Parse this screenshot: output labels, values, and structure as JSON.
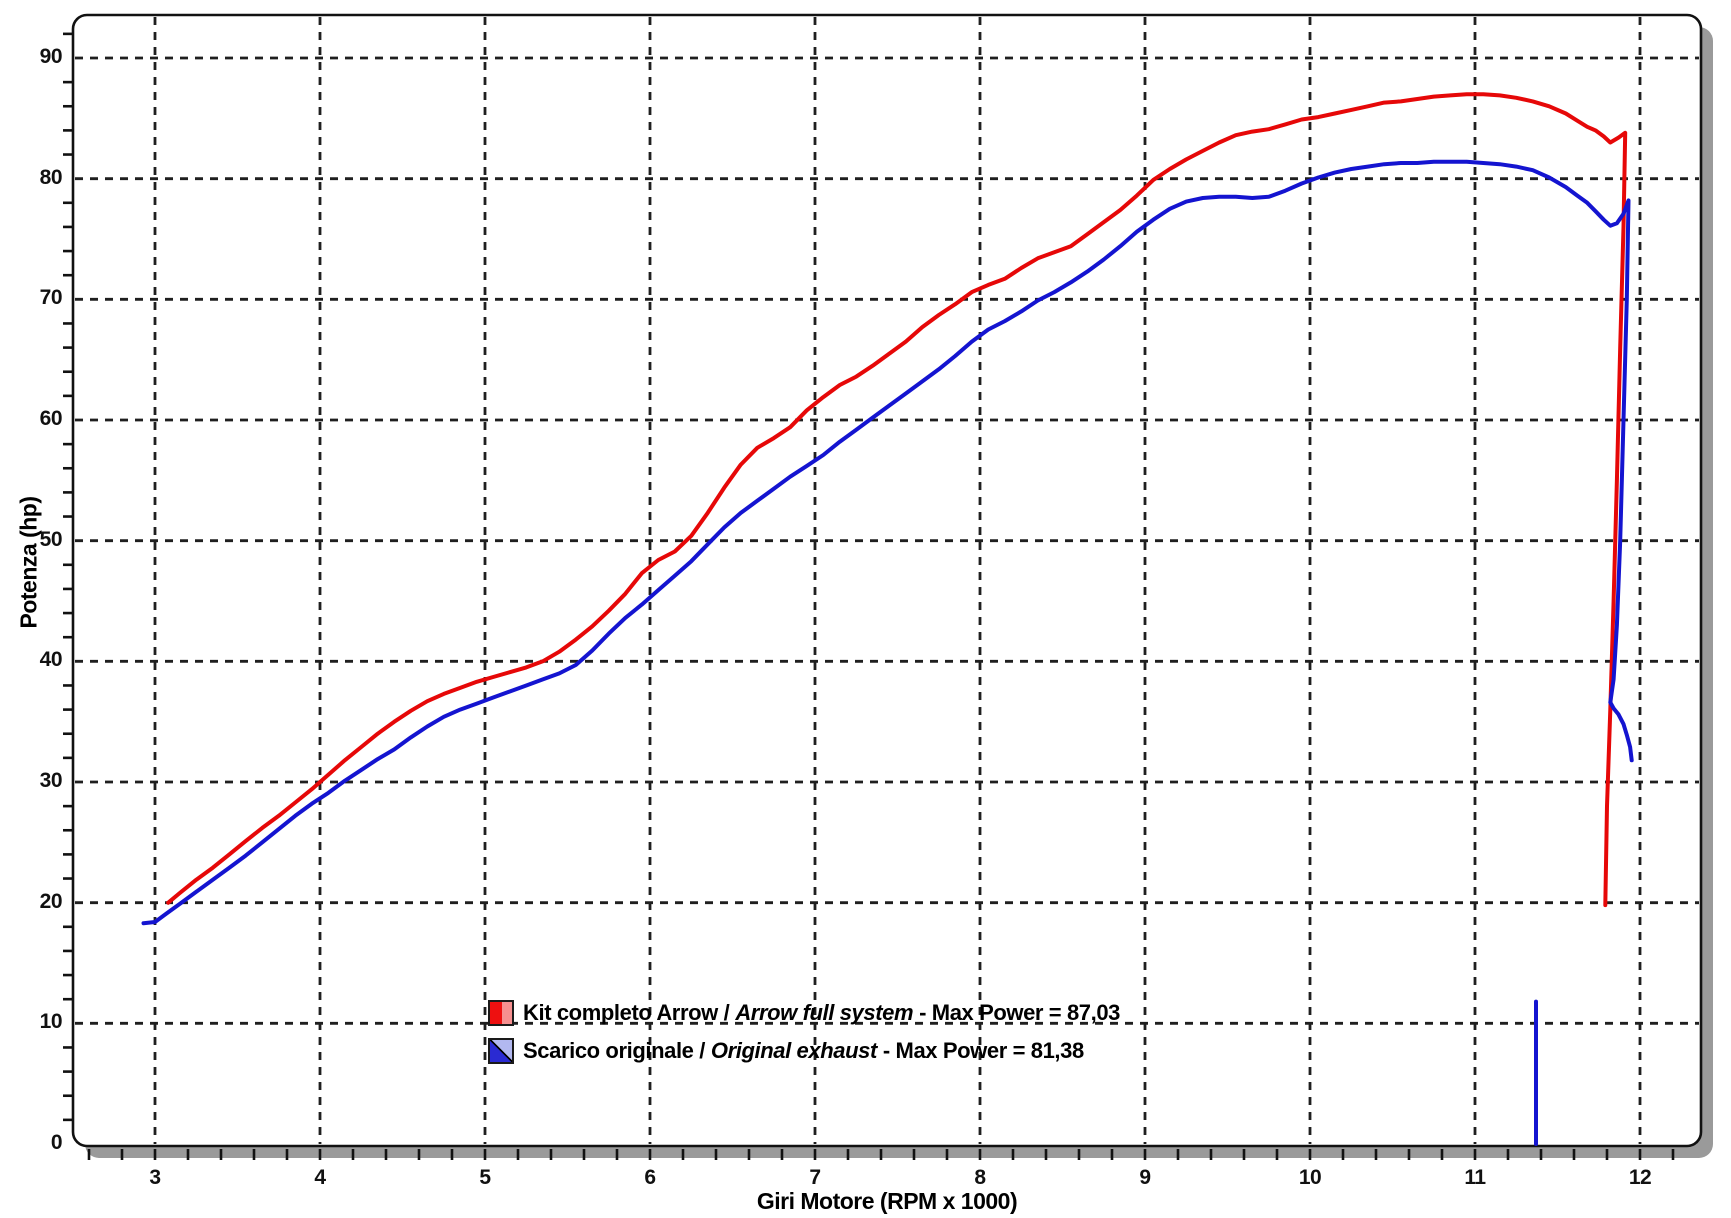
{
  "chart_data": {
    "type": "line",
    "title": "",
    "xlabel": "Giri Motore (RPM x 1000)",
    "ylabel": "Potenza (hp)",
    "xlim": [
      2.5,
      12.37
    ],
    "ylim": [
      0,
      93.6
    ],
    "x_ticks": [
      3,
      4,
      5,
      6,
      7,
      8,
      9,
      10,
      11,
      12
    ],
    "y_ticks": [
      0,
      10,
      20,
      30,
      40,
      50,
      60,
      70,
      80,
      90
    ],
    "x_minor_step": 0.2,
    "y_minor_step": 2,
    "grid": "dashed-black",
    "grid_color": "#1f1f1f",
    "frame_color": "#111111",
    "shadow_color": "#9a9a9a",
    "legend_position": "inside-bottom-left",
    "series": [
      {
        "name": "Kit completo Arrow / Arrow full system",
        "color": "#e60808",
        "max_power": "87,03",
        "segments": [
          [
            [
              3.08,
              20.0
            ],
            [
              3.15,
              20.8
            ],
            [
              3.25,
              21.9
            ],
            [
              3.35,
              22.9
            ],
            [
              3.45,
              24.0
            ],
            [
              3.55,
              25.1
            ],
            [
              3.65,
              26.2
            ],
            [
              3.75,
              27.2
            ],
            [
              3.85,
              28.3
            ],
            [
              3.95,
              29.4
            ],
            [
              4.05,
              30.6
            ],
            [
              4.15,
              31.8
            ],
            [
              4.25,
              32.9
            ],
            [
              4.35,
              34.0
            ],
            [
              4.45,
              35.0
            ],
            [
              4.55,
              35.9
            ],
            [
              4.65,
              36.7
            ],
            [
              4.75,
              37.3
            ],
            [
              4.85,
              37.8
            ],
            [
              4.95,
              38.3
            ],
            [
              5.05,
              38.7
            ],
            [
              5.15,
              39.1
            ],
            [
              5.25,
              39.5
            ],
            [
              5.35,
              40.0
            ],
            [
              5.45,
              40.8
            ],
            [
              5.55,
              41.8
            ],
            [
              5.65,
              42.9
            ],
            [
              5.75,
              44.2
            ],
            [
              5.85,
              45.6
            ],
            [
              5.95,
              47.3
            ],
            [
              6.05,
              48.4
            ],
            [
              6.15,
              49.1
            ],
            [
              6.25,
              50.4
            ],
            [
              6.35,
              52.3
            ],
            [
              6.45,
              54.4
            ],
            [
              6.55,
              56.3
            ],
            [
              6.65,
              57.7
            ],
            [
              6.75,
              58.5
            ],
            [
              6.85,
              59.4
            ],
            [
              6.95,
              60.8
            ],
            [
              7.05,
              61.9
            ],
            [
              7.15,
              62.9
            ],
            [
              7.25,
              63.6
            ],
            [
              7.35,
              64.5
            ],
            [
              7.45,
              65.5
            ],
            [
              7.55,
              66.5
            ],
            [
              7.65,
              67.7
            ],
            [
              7.75,
              68.7
            ],
            [
              7.85,
              69.6
            ],
            [
              7.95,
              70.6
            ],
            [
              8.05,
              71.2
            ],
            [
              8.15,
              71.7
            ],
            [
              8.25,
              72.6
            ],
            [
              8.35,
              73.4
            ],
            [
              8.45,
              73.9
            ],
            [
              8.55,
              74.4
            ],
            [
              8.65,
              75.4
            ],
            [
              8.75,
              76.4
            ],
            [
              8.85,
              77.4
            ],
            [
              8.95,
              78.6
            ],
            [
              9.05,
              79.9
            ],
            [
              9.15,
              80.8
            ],
            [
              9.25,
              81.6
            ],
            [
              9.35,
              82.3
            ],
            [
              9.45,
              83.0
            ],
            [
              9.55,
              83.6
            ],
            [
              9.65,
              83.9
            ],
            [
              9.75,
              84.1
            ],
            [
              9.85,
              84.5
            ],
            [
              9.95,
              84.9
            ],
            [
              10.05,
              85.1
            ],
            [
              10.15,
              85.4
            ],
            [
              10.25,
              85.7
            ],
            [
              10.35,
              86.0
            ],
            [
              10.45,
              86.3
            ],
            [
              10.55,
              86.4
            ],
            [
              10.65,
              86.6
            ],
            [
              10.75,
              86.8
            ],
            [
              10.85,
              86.9
            ],
            [
              10.95,
              87.0
            ],
            [
              11.05,
              87.0
            ],
            [
              11.15,
              86.9
            ],
            [
              11.25,
              86.7
            ],
            [
              11.35,
              86.4
            ],
            [
              11.45,
              86.0
            ],
            [
              11.55,
              85.4
            ],
            [
              11.62,
              84.8
            ],
            [
              11.68,
              84.3
            ],
            [
              11.73,
              84.0
            ],
            [
              11.78,
              83.5
            ],
            [
              11.82,
              83.0
            ],
            [
              11.87,
              83.4
            ],
            [
              11.91,
              83.8
            ],
            [
              11.9,
              76.0
            ],
            [
              11.88,
              66.0
            ],
            [
              11.86,
              55.0
            ],
            [
              11.84,
              45.0
            ],
            [
              11.82,
              36.0
            ],
            [
              11.8,
              28.0
            ],
            [
              11.79,
              19.8
            ]
          ]
        ]
      },
      {
        "name": "Scarico originale / Original exhaust",
        "color": "#1414d0",
        "max_power": "81,38",
        "segments": [
          [
            [
              2.93,
              18.3
            ],
            [
              3.0,
              18.4
            ],
            [
              3.07,
              19.1
            ],
            [
              3.15,
              19.9
            ],
            [
              3.25,
              20.9
            ],
            [
              3.35,
              21.9
            ],
            [
              3.45,
              22.9
            ],
            [
              3.55,
              23.9
            ],
            [
              3.65,
              25.0
            ],
            [
              3.75,
              26.1
            ],
            [
              3.85,
              27.2
            ],
            [
              3.95,
              28.2
            ],
            [
              4.05,
              29.1
            ],
            [
              4.15,
              30.1
            ],
            [
              4.25,
              31.0
            ],
            [
              4.35,
              31.9
            ],
            [
              4.45,
              32.7
            ],
            [
              4.55,
              33.7
            ],
            [
              4.65,
              34.6
            ],
            [
              4.75,
              35.4
            ],
            [
              4.85,
              36.0
            ],
            [
              4.95,
              36.5
            ],
            [
              5.05,
              37.0
            ],
            [
              5.15,
              37.5
            ],
            [
              5.25,
              38.0
            ],
            [
              5.35,
              38.5
            ],
            [
              5.45,
              39.0
            ],
            [
              5.55,
              39.7
            ],
            [
              5.65,
              40.9
            ],
            [
              5.75,
              42.3
            ],
            [
              5.85,
              43.6
            ],
            [
              5.95,
              44.7
            ],
            [
              6.05,
              45.9
            ],
            [
              6.15,
              47.1
            ],
            [
              6.25,
              48.3
            ],
            [
              6.35,
              49.7
            ],
            [
              6.45,
              51.1
            ],
            [
              6.55,
              52.3
            ],
            [
              6.65,
              53.3
            ],
            [
              6.75,
              54.3
            ],
            [
              6.85,
              55.3
            ],
            [
              6.95,
              56.2
            ],
            [
              7.05,
              57.1
            ],
            [
              7.15,
              58.2
            ],
            [
              7.25,
              59.2
            ],
            [
              7.35,
              60.2
            ],
            [
              7.45,
              61.2
            ],
            [
              7.55,
              62.2
            ],
            [
              7.65,
              63.2
            ],
            [
              7.75,
              64.2
            ],
            [
              7.85,
              65.3
            ],
            [
              7.95,
              66.5
            ],
            [
              8.05,
              67.5
            ],
            [
              8.15,
              68.2
            ],
            [
              8.25,
              69.0
            ],
            [
              8.35,
              69.9
            ],
            [
              8.45,
              70.6
            ],
            [
              8.55,
              71.4
            ],
            [
              8.65,
              72.3
            ],
            [
              8.75,
              73.3
            ],
            [
              8.85,
              74.4
            ],
            [
              8.95,
              75.6
            ],
            [
              9.05,
              76.6
            ],
            [
              9.15,
              77.5
            ],
            [
              9.25,
              78.1
            ],
            [
              9.35,
              78.4
            ],
            [
              9.45,
              78.5
            ],
            [
              9.55,
              78.5
            ],
            [
              9.65,
              78.4
            ],
            [
              9.75,
              78.5
            ],
            [
              9.85,
              79.0
            ],
            [
              9.95,
              79.6
            ],
            [
              10.05,
              80.1
            ],
            [
              10.15,
              80.5
            ],
            [
              10.25,
              80.8
            ],
            [
              10.35,
              81.0
            ],
            [
              10.45,
              81.2
            ],
            [
              10.55,
              81.3
            ],
            [
              10.65,
              81.3
            ],
            [
              10.75,
              81.4
            ],
            [
              10.85,
              81.4
            ],
            [
              10.95,
              81.4
            ],
            [
              11.05,
              81.3
            ],
            [
              11.15,
              81.2
            ],
            [
              11.25,
              81.0
            ],
            [
              11.35,
              80.7
            ],
            [
              11.45,
              80.1
            ],
            [
              11.55,
              79.3
            ],
            [
              11.62,
              78.6
            ],
            [
              11.68,
              78.0
            ],
            [
              11.73,
              77.3
            ],
            [
              11.78,
              76.6
            ],
            [
              11.82,
              76.1
            ],
            [
              11.86,
              76.3
            ],
            [
              11.9,
              77.1
            ],
            [
              11.93,
              78.2
            ],
            [
              11.92,
              70.0
            ],
            [
              11.9,
              60.0
            ],
            [
              11.88,
              50.0
            ],
            [
              11.86,
              43.0
            ],
            [
              11.84,
              38.5
            ],
            [
              11.82,
              36.6
            ],
            [
              11.84,
              36.1
            ],
            [
              11.87,
              35.6
            ],
            [
              11.9,
              34.8
            ],
            [
              11.92,
              33.9
            ],
            [
              11.94,
              32.9
            ],
            [
              11.95,
              31.8
            ]
          ],
          [
            [
              11.37,
              0.0
            ],
            [
              11.37,
              11.8
            ]
          ]
        ]
      }
    ],
    "legend": [
      {
        "text": "Kit completo Arrow /",
        "text_italic": "Arrow full system",
        "text_suffix": "- Max Power = 87,03",
        "swatch_dark": "#ee1010",
        "swatch_light": "#f69090",
        "swatch_split": "vertical"
      },
      {
        "text": "Scarico originale /",
        "text_italic": "Original exhaust",
        "text_suffix": "- Max Power = 81,38",
        "swatch_dark": "#2a2ad2",
        "swatch_light": "#b2b8f0",
        "swatch_split": "diagonal"
      }
    ]
  }
}
